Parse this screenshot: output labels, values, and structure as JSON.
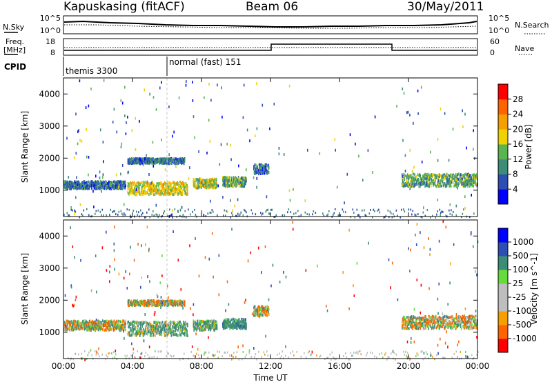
{
  "header": {
    "station": "Kapuskasing (fitACF)",
    "beam": "Beam 06",
    "date": "30/May/2011"
  },
  "top_panels": {
    "nsky_label": "N.Sky",
    "nsky_ticks": [
      "10^5",
      "10^0"
    ],
    "nsearch_label": "N.Search",
    "nsearch_ticks": [
      "10^5",
      "10^0"
    ],
    "freq_label_1": "Freq.",
    "freq_label_2": "[MHz]",
    "freq_ticks": [
      "18",
      "8"
    ],
    "nave_label": "Nave",
    "nave_ticks": [
      "60",
      "0"
    ],
    "cpid_label": "CPID",
    "cpid_segments": [
      {
        "start_hour": 0,
        "label": "themis 3300"
      },
      {
        "start_hour": 6,
        "label": "normal (fast) 151"
      }
    ]
  },
  "colors": {
    "power_scale": [
      "#0000ff",
      "#2d4fb4",
      "#3c8c78",
      "#5ab450",
      "#f0d200",
      "#f5a000",
      "#ff6400",
      "#ff0000"
    ],
    "velocity_scale": [
      "#ff0000",
      "#ff6400",
      "#f5a000",
      "#bebebe",
      "#bebebe",
      "#64dc3c",
      "#3c8c78",
      "#2d4fb4",
      "#0000ff"
    ],
    "grid": "#000000"
  },
  "chart_data": [
    {
      "type": "heatmap",
      "name": "power-panel",
      "title": "",
      "xlabel": "",
      "ylabel": "Slant Range [km]",
      "x_range_hours": [
        0,
        24
      ],
      "y_range_km": [
        180,
        4500
      ],
      "yticks": [
        1000,
        2000,
        3000,
        4000
      ],
      "colorbar_label": "Power [dB]",
      "colorbar_ticks": [
        "4",
        "8",
        "12",
        "16",
        "20",
        "24",
        "28"
      ],
      "colorbar_range": [
        0,
        30
      ],
      "echo_regions": [
        {
          "t_start": 0.0,
          "t_end": 3.6,
          "r_center": 1200,
          "r_half_width": 120,
          "power": 8
        },
        {
          "t_start": 3.7,
          "t_end": 7.2,
          "r_center": 1100,
          "r_half_width": 200,
          "power": 18
        },
        {
          "t_start": 3.7,
          "t_end": 7.0,
          "r_center": 1950,
          "r_half_width": 80,
          "power": 8
        },
        {
          "t_start": 7.5,
          "t_end": 8.9,
          "r_center": 1250,
          "r_half_width": 150,
          "power": 16
        },
        {
          "t_start": 9.2,
          "t_end": 10.6,
          "r_center": 1300,
          "r_half_width": 150,
          "power": 12
        },
        {
          "t_start": 11.0,
          "t_end": 11.9,
          "r_center": 1700,
          "r_half_width": 150,
          "power": 8
        },
        {
          "t_start": 19.6,
          "t_end": 24.0,
          "r_center": 1350,
          "r_half_width": 200,
          "power": 12
        }
      ]
    },
    {
      "type": "heatmap",
      "name": "velocity-panel",
      "title": "",
      "xlabel": "Time UT",
      "ylabel": "Slant Range [km]",
      "x_range_hours": [
        0,
        24
      ],
      "y_range_km": [
        180,
        4500
      ],
      "xticks": [
        "00:00",
        "04:00",
        "08:00",
        "12:00",
        "16:00",
        "20:00",
        "00:00"
      ],
      "yticks": [
        1000,
        2000,
        3000,
        4000
      ],
      "colorbar_label": "Velocity [m s^-1]",
      "colorbar_ticks": [
        "1000",
        "500",
        "100",
        "25",
        "-25",
        "-100",
        "-500",
        "-1000"
      ],
      "echo_regions": [
        {
          "t_start": 0.0,
          "t_end": 3.6,
          "r_center": 1250,
          "r_half_width": 150,
          "velocity": 0
        },
        {
          "t_start": 3.7,
          "t_end": 7.2,
          "r_center": 1150,
          "r_half_width": 220,
          "velocity": 150
        },
        {
          "t_start": 3.7,
          "t_end": 7.0,
          "r_center": 1950,
          "r_half_width": 80,
          "velocity": 0
        },
        {
          "t_start": 7.5,
          "t_end": 8.9,
          "r_center": 1250,
          "r_half_width": 150,
          "velocity": 200
        },
        {
          "t_start": 9.2,
          "t_end": 10.6,
          "r_center": 1300,
          "r_half_width": 150,
          "velocity": 300
        },
        {
          "t_start": 11.0,
          "t_end": 11.9,
          "r_center": 1700,
          "r_half_width": 150,
          "velocity": 0
        },
        {
          "t_start": 19.6,
          "t_end": 24.0,
          "r_center": 1350,
          "r_half_width": 200,
          "velocity": 0
        }
      ]
    }
  ]
}
